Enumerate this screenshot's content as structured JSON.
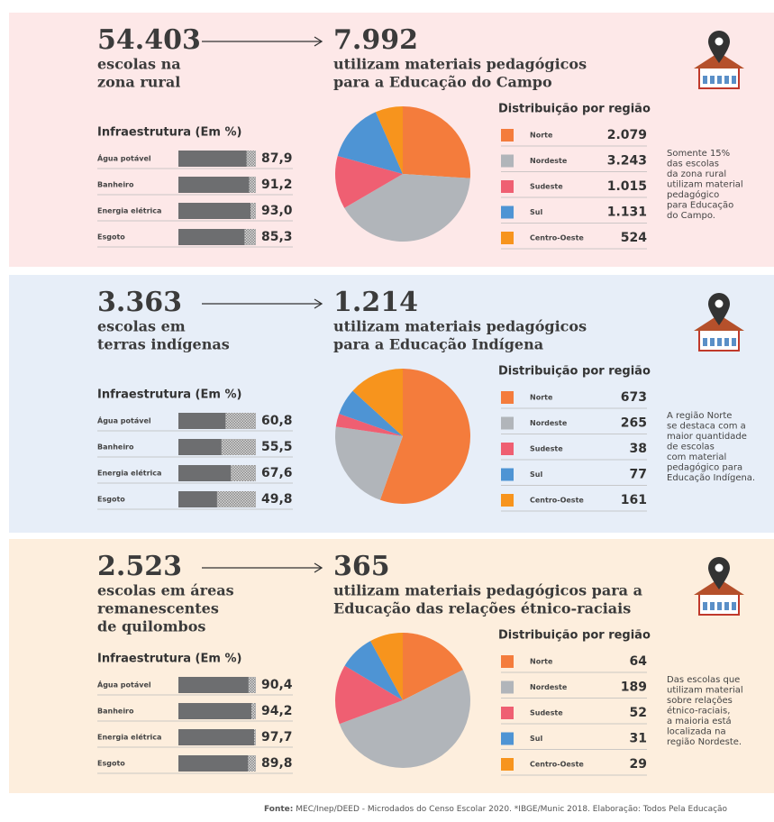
{
  "panels": [
    {
      "total": "54.403",
      "total_label": [
        "escolas na",
        "zona rural"
      ],
      "count": "7.992",
      "count_label": [
        "utilizam materiais pedagógicos",
        "para a Educação do Campo"
      ],
      "note": [
        "Somente 15%",
        "das escolas",
        "da zona rural",
        "utilizam material",
        "pedagógico",
        "para Educação",
        "do Campo."
      ],
      "background": "#fde8e8"
    },
    {
      "total": "3.363",
      "total_label": [
        "escolas em",
        "terras indígenas"
      ],
      "count": "1.214",
      "count_label": [
        "utilizam materiais pedagógicos",
        "para a Educação Indígena"
      ],
      "note": [
        "A região Norte",
        "se destaca com a",
        "maior quantidade",
        "de escolas",
        "com material",
        "pedagógico para",
        "Educação Indígena."
      ],
      "background": "#e7eef8"
    },
    {
      "total": "2.523",
      "total_label": [
        "escolas em áreas",
        "remanescentes",
        "de quilombos"
      ],
      "count": "365",
      "count_label": [
        "utilizam materiais pedagógicos para a",
        "Educação das relações étnico-raciais"
      ],
      "note": [
        "Das escolas que",
        "utilizam material",
        "sobre relações",
        "étnico-raciais,",
        "a maioria está",
        "localizada na",
        "região Nordeste."
      ],
      "background": "#fdeedd"
    }
  ],
  "chart_data": [
    {
      "type": "bar",
      "title": "Infraestrutura (Em %)",
      "categories": [
        "Água potável",
        "Banheiro",
        "Energia elétrica",
        "Esgoto"
      ],
      "values": [
        87.9,
        91.2,
        93.0,
        85.3
      ],
      "value_labels": [
        "87,9",
        "91,2",
        "93,0",
        "85,3"
      ],
      "xlim": [
        0,
        100
      ],
      "color": "#6d6e70"
    },
    {
      "type": "pie",
      "title": "Distribuição por região",
      "categories": [
        "Norte",
        "Nordeste",
        "Sudeste",
        "Sul",
        "Centro-Oeste"
      ],
      "values": [
        2079,
        3243,
        1015,
        1131,
        524
      ],
      "value_labels": [
        "2.079",
        "3.243",
        "1.015",
        "1.131",
        "524"
      ],
      "colors": [
        "#f47c3c",
        "#b1b5ba",
        "#ef5f72",
        "#4e94d4",
        "#f7941d"
      ]
    },
    {
      "type": "bar",
      "title": "Infraestrutura (Em %)",
      "categories": [
        "Água potável",
        "Banheiro",
        "Energia elétrica",
        "Esgoto"
      ],
      "values": [
        60.8,
        55.5,
        67.6,
        49.8
      ],
      "value_labels": [
        "60,8",
        "55,5",
        "67,6",
        "49,8"
      ],
      "xlim": [
        0,
        100
      ],
      "color": "#6d6e70"
    },
    {
      "type": "pie",
      "title": "Distribuição por região",
      "categories": [
        "Norte",
        "Nordeste",
        "Sudeste",
        "Sul",
        "Centro-Oeste"
      ],
      "values": [
        673,
        265,
        38,
        77,
        161
      ],
      "colors": [
        "#f47c3c",
        "#b1b5ba",
        "#ef5f72",
        "#4e94d4",
        "#f7941d"
      ]
    },
    {
      "type": "bar",
      "title": "Infraestrutura (Em %)",
      "categories": [
        "Água potável",
        "Banheiro",
        "Energia elétrica",
        "Esgoto"
      ],
      "values": [
        90.4,
        94.2,
        97.7,
        89.8
      ],
      "value_labels": [
        "90,4",
        "94,2",
        "97,7",
        "89,8"
      ],
      "xlim": [
        0,
        100
      ],
      "color": "#6d6e70"
    },
    {
      "type": "pie",
      "title": "Distribuição por região",
      "categories": [
        "Norte",
        "Nordeste",
        "Sudeste",
        "Sul",
        "Centro-Oeste"
      ],
      "values": [
        64,
        189,
        52,
        31,
        29
      ],
      "colors": [
        "#f47c3c",
        "#b1b5ba",
        "#ef5f72",
        "#4e94d4",
        "#f7941d"
      ]
    }
  ],
  "source_label": "Fonte:",
  "source": "MEC/Inep/DEED - Microdados do Censo Escolar 2020. *IBGE/Munic 2018. Elaboração: Todos Pela Educação"
}
